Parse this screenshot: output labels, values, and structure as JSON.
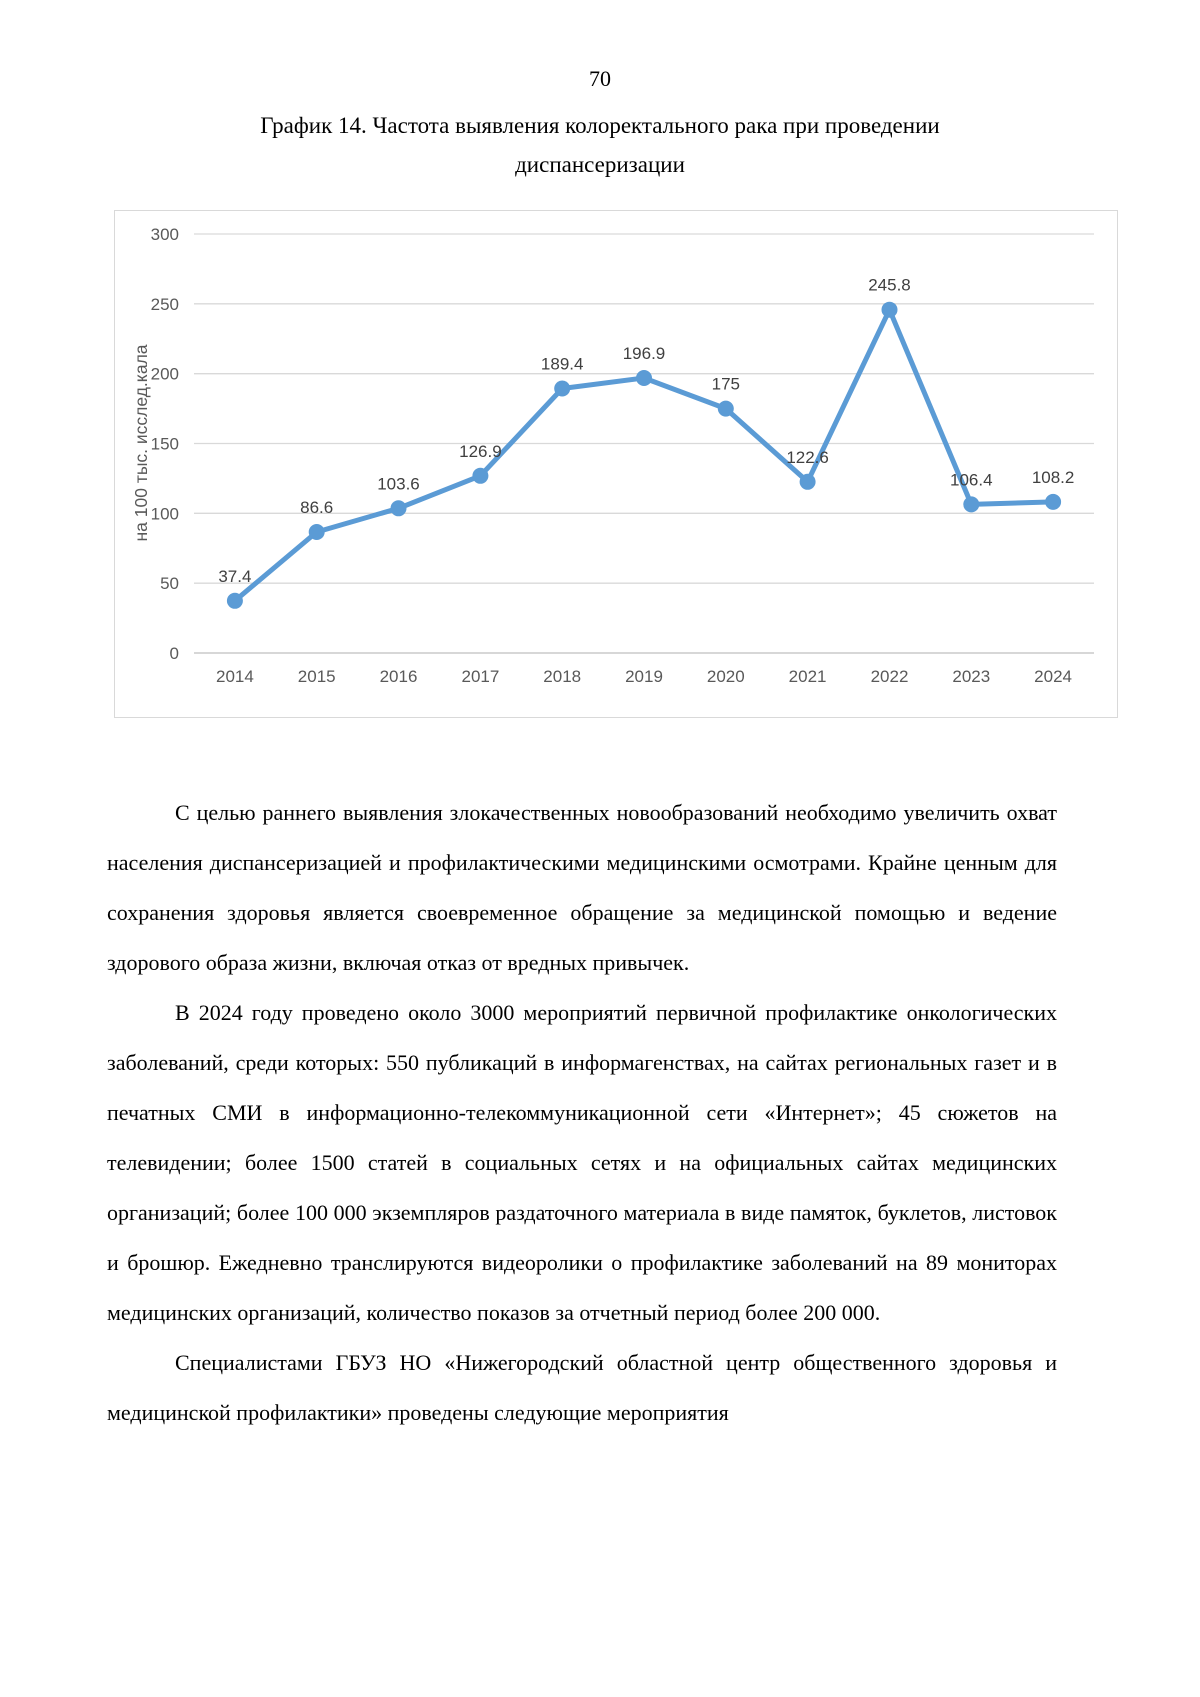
{
  "page_number": "70",
  "title": {
    "line1": "График 14. Частота выявления колоректального рака при проведении",
    "line2": "диспансеризации"
  },
  "chart_data": {
    "type": "line",
    "categories": [
      "2014",
      "2015",
      "2016",
      "2017",
      "2018",
      "2019",
      "2020",
      "2021",
      "2022",
      "2023",
      "2024"
    ],
    "values": [
      37.4,
      86.6,
      103.6,
      126.9,
      189.4,
      196.9,
      175,
      122.6,
      245.8,
      106.4,
      108.2
    ],
    "title": "",
    "xlabel": "",
    "ylabel": "на 100 тыс. исслед.кала",
    "ylim": [
      0,
      300
    ],
    "yticks": [
      0,
      50,
      100,
      150,
      200,
      250,
      300
    ],
    "grid": "horizontal",
    "legend": "none",
    "data_labels": true,
    "colors": {
      "series": "#5b9bd5",
      "data_label": "#404040",
      "tick_label": "#595959",
      "axis_title": "#595959",
      "gridline": "#d9d9d9",
      "zero_line": "#bfbfbf",
      "chart_border": "#d9d9d9"
    }
  },
  "paragraphs": [
    "С целью раннего выявления злокачественных новообразований необходимо увеличить охват населения диспансеризацией и профилактическими медицинскими осмотрами. Крайне ценным для сохранения здоровья является своевременное обращение за медицинской помощью и ведение здорового образа жизни, включая отказ от вредных привычек.",
    "В 2024 году проведено около 3000 мероприятий первичной профилактике онкологических заболеваний, среди которых: 550 публикаций в информагенствах, на сайтах региональных газет и в печатных СМИ в информационно-телекоммуникационной сети «Интернет»; 45 сюжетов на телевидении; более 1500 статей в социальных сетях и на официальных сайтах медицинских организаций; более 100 000 экземпляров раздаточного материала в виде памяток, буклетов, листовок и брошюр. Ежедневно транслируются видеоролики о профилактике заболеваний на 89 мониторах медицинских организаций, количество показов за отчетный период более 200 000.",
    "Специалистами ГБУЗ НО «Нижегородский областной центр общественного здоровья и медицинской профилактики» проведены следующие мероприятия"
  ]
}
